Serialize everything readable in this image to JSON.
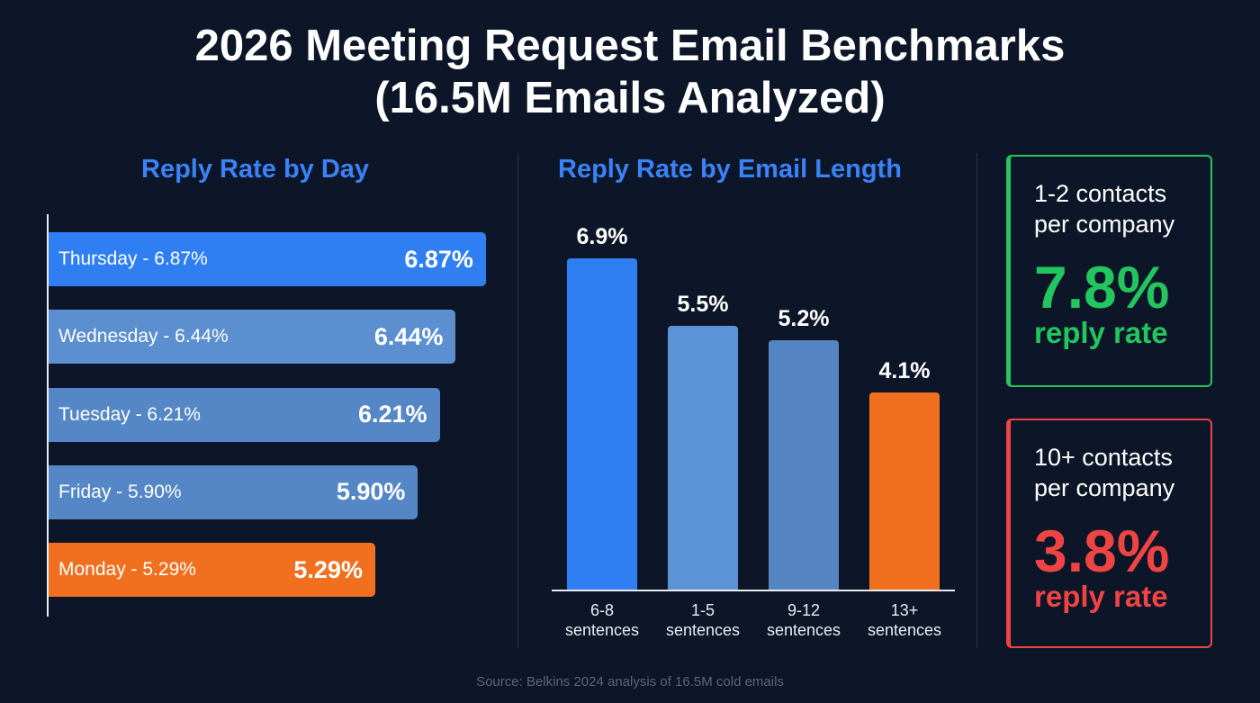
{
  "title_line1": "2026 Meeting Request Email Benchmarks",
  "title_line2": "(16.5M Emails Analyzed)",
  "chart_data": [
    {
      "type": "bar",
      "orientation": "horizontal",
      "title": "Reply Rate by Day",
      "unit": "%",
      "categories": [
        "Thursday",
        "Wednesday",
        "Tuesday",
        "Friday",
        "Monday"
      ],
      "bar_labels": [
        "Thursday - 6.87%",
        "Wednesday - 6.44%",
        "Tuesday - 6.21%",
        "Friday - 5.90%",
        "Monday - 5.29%"
      ],
      "value_labels": [
        "6.87%",
        "6.44%",
        "6.21%",
        "5.90%",
        "5.29%"
      ],
      "values": [
        6.87,
        6.44,
        6.21,
        5.9,
        5.29
      ],
      "colors": [
        "#2f7ef2",
        "#5b8fd0",
        "#5587c6",
        "#5587c6",
        "#f07020"
      ]
    },
    {
      "type": "bar",
      "orientation": "vertical",
      "title": "Reply Rate by Email Length",
      "unit": "%",
      "categories": [
        [
          "6-8",
          "sentences"
        ],
        [
          "1-5",
          "sentences"
        ],
        [
          "9-12",
          "sentences"
        ],
        [
          "13+",
          "sentences"
        ]
      ],
      "value_labels": [
        "6.9%",
        "5.5%",
        "5.2%",
        "4.1%"
      ],
      "values": [
        6.9,
        5.5,
        5.2,
        4.1
      ],
      "colors": [
        "#2f7ef2",
        "#5b93d6",
        "#5484c2",
        "#f07020"
      ],
      "ylim": [
        0,
        6.9
      ]
    }
  ],
  "cards": [
    {
      "context_line1": "1-2 contacts",
      "context_line2": "per company",
      "value": "7.8%",
      "caption": "reply rate",
      "color": "#22c55e"
    },
    {
      "context_line1": "10+ contacts",
      "context_line2": "per company",
      "value": "3.8%",
      "caption": "reply rate",
      "color": "#ef4444"
    }
  ],
  "source": "Source: Belkins 2024 analysis of 16.5M cold emails"
}
